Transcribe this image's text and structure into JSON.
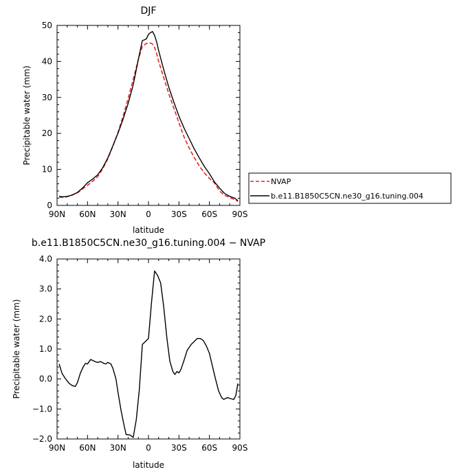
{
  "chart_data": [
    {
      "type": "line",
      "title": "DJF",
      "xlabel": "latitude",
      "ylabel": "Precipitable water (mm)",
      "xlim": [
        90,
        -90
      ],
      "ylim": [
        0,
        50
      ],
      "x_ticks": [
        {
          "value": 90,
          "label": "90N"
        },
        {
          "value": 60,
          "label": "60N"
        },
        {
          "value": 30,
          "label": "30N"
        },
        {
          "value": 0,
          "label": "0"
        },
        {
          "value": -30,
          "label": "30S"
        },
        {
          "value": -60,
          "label": "60S"
        },
        {
          "value": -90,
          "label": "90S"
        }
      ],
      "y_ticks": [
        {
          "value": 0,
          "label": "0"
        },
        {
          "value": 10,
          "label": "10"
        },
        {
          "value": 20,
          "label": "20"
        },
        {
          "value": 30,
          "label": "30"
        },
        {
          "value": 40,
          "label": "40"
        },
        {
          "value": 50,
          "label": "50"
        }
      ],
      "legend_placement": "right",
      "series": [
        {
          "name": "NVAP",
          "color": "#e8221e",
          "dash": "dashed",
          "x": [
            88,
            84,
            80,
            75,
            70,
            65,
            60,
            55,
            50,
            45,
            40,
            35,
            30,
            25,
            20,
            15,
            10,
            6,
            2,
            0,
            -2,
            -4,
            -6,
            -8,
            -10,
            -15,
            -20,
            -25,
            -30,
            -35,
            -40,
            -45,
            -50,
            -55,
            -60,
            -65,
            -70,
            -75,
            -80,
            -85,
            -88
          ],
          "y": [
            2.3,
            2.2,
            2.4,
            2.9,
            3.5,
            4.5,
            5.6,
            6.7,
            8.0,
            10.2,
            13.0,
            16.5,
            20.3,
            24.8,
            29.7,
            35.0,
            40.5,
            44.2,
            45.0,
            45.1,
            45.1,
            44.8,
            43.9,
            42.2,
            40.0,
            35.5,
            31.0,
            27.0,
            23.0,
            19.0,
            16.0,
            13.3,
            11.0,
            9.0,
            7.5,
            6.2,
            4.0,
            2.8,
            2.2,
            1.6,
            1.1
          ]
        },
        {
          "name": "b.e11.B1850C5CN.ne30_g16.tuning.004",
          "color": "#000000",
          "dash": "solid",
          "x": [
            88,
            84,
            80,
            75,
            70,
            65,
            60,
            55,
            50,
            45,
            40,
            35,
            30,
            25,
            20,
            15,
            10,
            6,
            4,
            2,
            0,
            -2,
            -4,
            -6,
            -8,
            -10,
            -15,
            -20,
            -25,
            -30,
            -35,
            -40,
            -45,
            -50,
            -55,
            -60,
            -65,
            -70,
            -75,
            -80,
            -85,
            -88
          ],
          "y": [
            2.5,
            2.4,
            2.5,
            2.9,
            3.6,
            4.8,
            6.3,
            7.3,
            8.5,
            10.5,
            13.2,
            16.6,
            20.1,
            24.0,
            28.3,
            33.5,
            40.5,
            45.8,
            46.0,
            46.3,
            47.5,
            48.0,
            48.3,
            47.2,
            45.5,
            43.0,
            37.7,
            32.8,
            28.7,
            24.8,
            21.5,
            18.6,
            15.7,
            13.2,
            10.8,
            8.8,
            6.5,
            4.8,
            3.3,
            2.5,
            2.0,
            1.3
          ]
        }
      ]
    },
    {
      "type": "line",
      "title": "b.e11.B1850C5CN.ne30_g16.tuning.004 − NVAP",
      "xlabel": "latitude",
      "ylabel": "Precipitable water (mm)",
      "xlim": [
        90,
        -90
      ],
      "ylim": [
        -2.0,
        4.0
      ],
      "x_ticks": [
        {
          "value": 90,
          "label": "90N"
        },
        {
          "value": 60,
          "label": "60N"
        },
        {
          "value": 30,
          "label": "30N"
        },
        {
          "value": 0,
          "label": "0"
        },
        {
          "value": -30,
          "label": "30S"
        },
        {
          "value": -60,
          "label": "60S"
        },
        {
          "value": -90,
          "label": "90S"
        }
      ],
      "y_ticks": [
        {
          "value": -2.0,
          "label": "−2.0"
        },
        {
          "value": -1.0,
          "label": "−1.0"
        },
        {
          "value": 0.0,
          "label": "0.0"
        },
        {
          "value": 1.0,
          "label": "1.0"
        },
        {
          "value": 2.0,
          "label": "2.0"
        },
        {
          "value": 3.0,
          "label": "3.0"
        },
        {
          "value": 4.0,
          "label": "4.0"
        }
      ],
      "series": [
        {
          "color": "#000000",
          "dash": "solid",
          "x": [
            88,
            85,
            82,
            78,
            75,
            72,
            70,
            67,
            64,
            62,
            60,
            57,
            55,
            52,
            50,
            47,
            44,
            42,
            40,
            37,
            35,
            32,
            30,
            27,
            24,
            22,
            18,
            15,
            12,
            9,
            6,
            3,
            0,
            -3,
            -6,
            -9,
            -12,
            -15,
            -18,
            -21,
            -24,
            -26,
            -28,
            -30,
            -32,
            -35,
            -38,
            -42,
            -45,
            -48,
            -51,
            -54,
            -57,
            -60,
            -63,
            -66,
            -69,
            -72,
            -74,
            -76,
            -78,
            -80,
            -84,
            -86,
            -88
          ],
          "y": [
            0.5,
            0.18,
            0.02,
            -0.15,
            -0.22,
            -0.25,
            -0.12,
            0.2,
            0.42,
            0.52,
            0.5,
            0.65,
            0.62,
            0.57,
            0.55,
            0.58,
            0.52,
            0.5,
            0.55,
            0.5,
            0.35,
            0.0,
            -0.45,
            -1.05,
            -1.55,
            -1.85,
            -1.87,
            -1.95,
            -1.35,
            -0.35,
            1.15,
            1.25,
            1.35,
            2.55,
            3.6,
            3.45,
            3.2,
            2.4,
            1.4,
            0.6,
            0.25,
            0.15,
            0.25,
            0.2,
            0.32,
            0.62,
            0.95,
            1.15,
            1.25,
            1.35,
            1.35,
            1.28,
            1.1,
            0.85,
            0.42,
            0.0,
            -0.4,
            -0.62,
            -0.68,
            -0.65,
            -0.62,
            -0.65,
            -0.68,
            -0.55,
            -0.15
          ]
        }
      ]
    }
  ]
}
